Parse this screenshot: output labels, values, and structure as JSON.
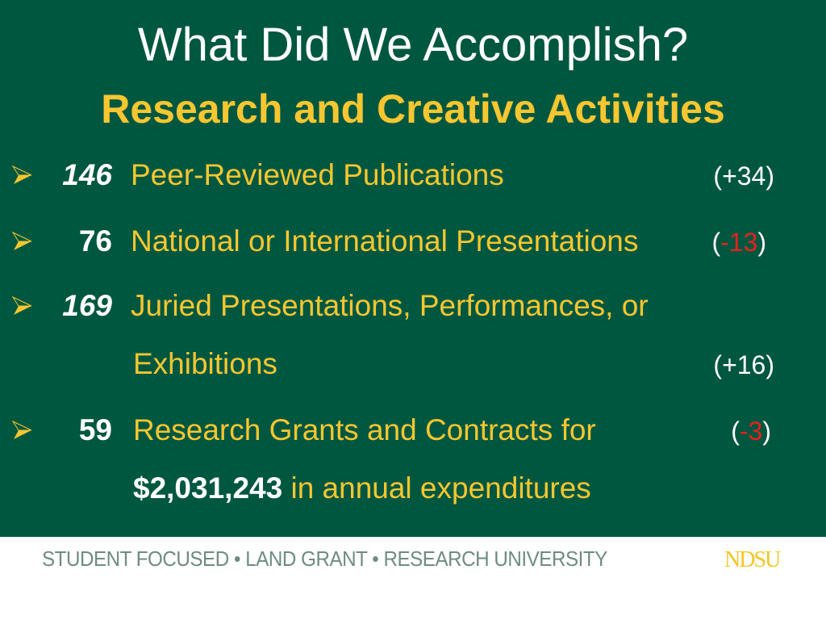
{
  "header": {
    "title": "What Did We Accomplish?",
    "subtitle": "Research and Creative Activities"
  },
  "items": [
    {
      "number": "146",
      "label": "Peer-Reviewed Publications",
      "delta_open": "(",
      "delta_value": "+34",
      "delta_close": ")"
    },
    {
      "number": "76",
      "label": "National or International Presentations",
      "delta_open": "(",
      "delta_value": "-13",
      "delta_close": ")"
    },
    {
      "number": "169",
      "label": "Juried Presentations, Performances, or",
      "label_line2": "Exhibitions",
      "delta_open": "(",
      "delta_value": "+16",
      "delta_close": ")"
    },
    {
      "number": "59",
      "label": "Research Grants and Contracts for",
      "amount": "$2,031,243",
      "label_line2": " in annual expenditures",
      "delta_open": "(",
      "delta_value": "-3",
      "delta_close": ")"
    }
  ],
  "footer": {
    "tagline": "STUDENT FOCUSED • LAND GRANT • RESEARCH UNIVERSITY",
    "logo": "NDSU"
  },
  "colors": {
    "background": "#005740",
    "accent": "#f8c630",
    "negative": "#e8201f"
  }
}
